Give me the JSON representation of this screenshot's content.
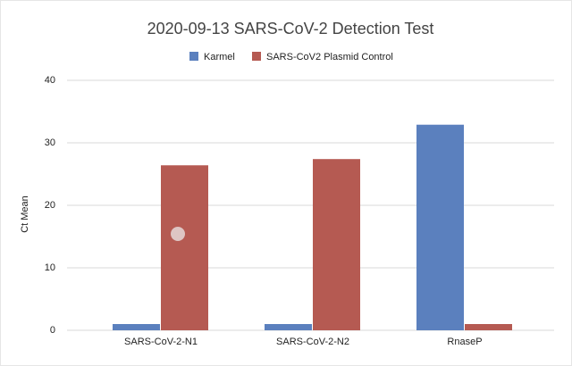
{
  "chart_data": {
    "type": "bar",
    "title": "2020-09-13 SARS-CoV-2 Detection Test",
    "y_label": "Ct Mean",
    "categories": [
      "SARS-CoV-2-N1",
      "SARS-CoV-2-N2",
      "RnaseP"
    ],
    "series": [
      {
        "name": "Karmel",
        "color": "#5b80be",
        "values": [
          1,
          1,
          32.9
        ]
      },
      {
        "name": "SARS-CoV2 Plasmid Control",
        "color": "#b55a52",
        "values": [
          26.4,
          27.4,
          1
        ]
      }
    ],
    "ylim": [
      0,
      40
    ],
    "yticks": [
      0,
      10,
      20,
      30,
      40
    ],
    "grid": true,
    "legend": "top"
  }
}
